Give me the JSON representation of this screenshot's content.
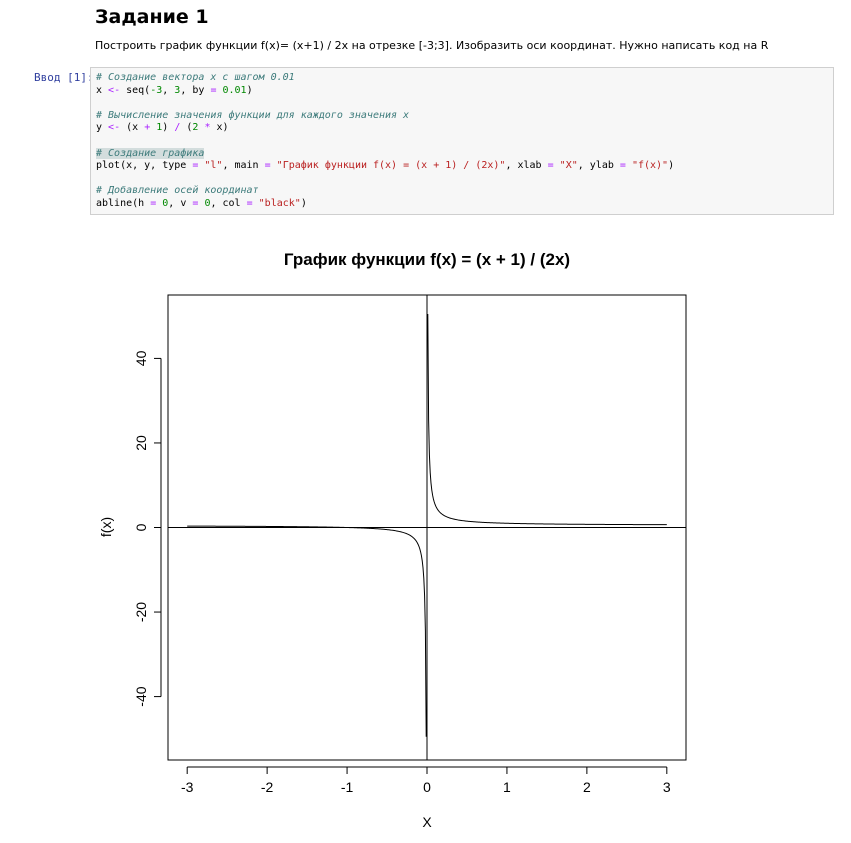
{
  "notebook": {
    "heading": "Задание 1",
    "description": "Построить график функции f(x)= (x+1) / 2x на отрезке [-3;3]. Изобразить оси координат. Нужно написать код на R",
    "cell_prompt": "Ввод [1]:",
    "code": {
      "comment1": "# Создание вектора x с шагом 0.01",
      "comment2": "# Вычисление значения функции для каждого значения x",
      "comment3": "# Создание графика",
      "comment4": "# Добавление осей координат",
      "seq_from": "-3",
      "seq_to": "3",
      "seq_by": "0.01",
      "num_one": "1",
      "num_two": "2",
      "plot_type": "\"l\"",
      "plot_main": "\"График функции f(x) = (x + 1) / (2x)\"",
      "plot_xlab": "\"X\"",
      "plot_ylab": "\"f(x)\"",
      "abline_h": "0",
      "abline_v": "0",
      "abline_col": "\"black\""
    }
  },
  "chart_data": {
    "type": "line",
    "title": "График функции f(x) = (x + 1) / (2x)",
    "xlabel": "X",
    "ylabel": "f(x)",
    "xlim": [
      -3.24,
      3.24
    ],
    "ylim": [
      -55,
      55
    ],
    "x_ticks": [
      -3,
      -2,
      -1,
      0,
      1,
      2,
      3
    ],
    "y_ticks": [
      -40,
      -20,
      0,
      20,
      40
    ],
    "x_tick_labels": [
      "-3",
      "-2",
      "-1",
      "0",
      "1",
      "2",
      "3"
    ],
    "y_tick_labels": [
      "-40",
      "-20",
      "0",
      "20",
      "40"
    ],
    "series": [
      {
        "x_range": [
          -3,
          3
        ],
        "step": 0.01,
        "function": "(x + 1) / (2 * x)",
        "y_min": -49.5,
        "y_max": 50.5,
        "color": "#000000"
      }
    ],
    "axis_lines": {
      "h": 0,
      "v": 0,
      "color": "#000000"
    },
    "grid": false
  }
}
